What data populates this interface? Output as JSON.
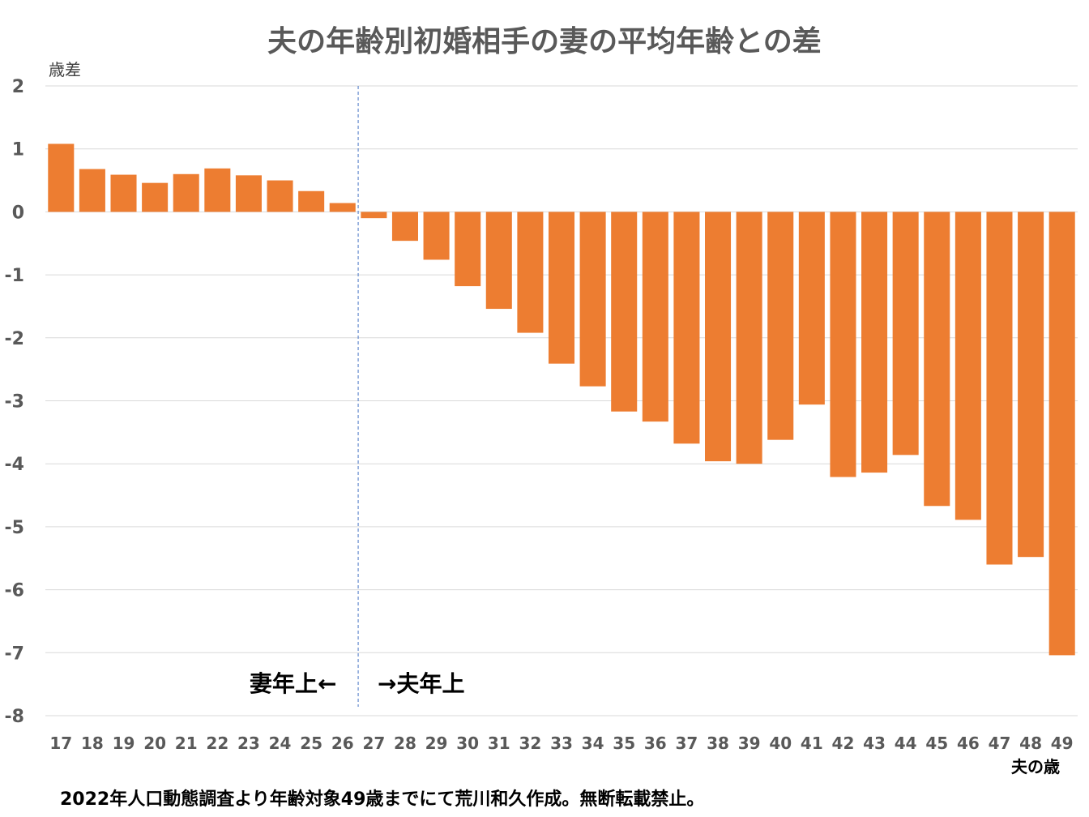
{
  "chart_data": {
    "type": "bar",
    "title": "夫の年齢別初婚相手の妻の平均年齢との差",
    "ylabel": "歳差",
    "xlabel": "夫の歳",
    "ylim": [
      -8,
      2
    ],
    "yticks": [
      2,
      1,
      0,
      -1,
      -2,
      -3,
      -4,
      -5,
      -6,
      -7,
      -8
    ],
    "grid": true,
    "categories": [
      "17",
      "18",
      "19",
      "20",
      "21",
      "22",
      "23",
      "24",
      "25",
      "26",
      "27",
      "28",
      "29",
      "30",
      "31",
      "32",
      "33",
      "34",
      "35",
      "36",
      "37",
      "38",
      "39",
      "40",
      "41",
      "42",
      "43",
      "44",
      "45",
      "46",
      "47",
      "48",
      "49"
    ],
    "values": [
      1.08,
      0.68,
      0.59,
      0.46,
      0.6,
      0.69,
      0.58,
      0.5,
      0.33,
      0.14,
      -0.1,
      -0.46,
      -0.76,
      -1.18,
      -1.54,
      -1.92,
      -2.41,
      -2.77,
      -3.17,
      -3.33,
      -3.68,
      -3.96,
      -4.0,
      -3.62,
      -3.06,
      -4.21,
      -4.14,
      -3.86,
      -4.67,
      -4.89,
      -5.6,
      -5.48,
      -7.04
    ],
    "bar_color": "#ED7D31",
    "divider_after": "26",
    "annotations": {
      "left": "妻年上←",
      "right": "→夫年上"
    }
  },
  "footer": "2022年人口動態調査より年齢対象49歳までにて荒川和久作成。無断転載禁止。"
}
